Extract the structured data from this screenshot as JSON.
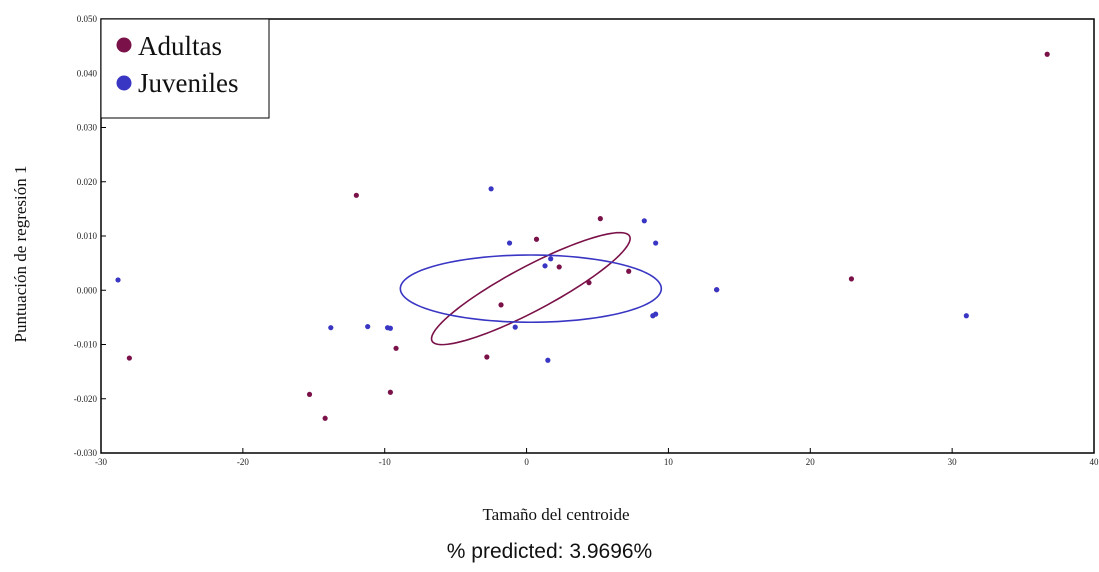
{
  "chart_data": {
    "type": "scatter",
    "xlabel": "Tamaño del centroide",
    "ylabel": "Puntuación de regresión 1",
    "xlim": [
      -30,
      40
    ],
    "ylim": [
      -0.03,
      0.05
    ],
    "x_ticks": [
      -30,
      -20,
      -10,
      0,
      10,
      20,
      30,
      40
    ],
    "y_ticks": [
      -0.03,
      -0.02,
      -0.01,
      0.0,
      0.01,
      0.02,
      0.03,
      0.04,
      0.05
    ],
    "y_tick_labels": [
      "-0.030",
      "-0.020",
      "-0.010",
      "0.000",
      "0.010",
      "0.020",
      "0.030",
      "0.040",
      "0.050"
    ],
    "legend_position": "top-left",
    "series": [
      {
        "name": "Adultas",
        "color": "#7a1148",
        "points": [
          [
            36.7,
            0.0435
          ],
          [
            -12.0,
            0.0175
          ],
          [
            5.2,
            0.0132
          ],
          [
            0.7,
            0.0094
          ],
          [
            2.3,
            0.0043
          ],
          [
            7.2,
            0.0035
          ],
          [
            4.4,
            0.0014
          ],
          [
            22.9,
            0.0021
          ],
          [
            13.4,
            0.0001
          ],
          [
            -1.8,
            -0.0027
          ],
          [
            -9.2,
            -0.0107
          ],
          [
            -2.8,
            -0.0123
          ],
          [
            -28.0,
            -0.0125
          ],
          [
            -9.6,
            -0.0188
          ],
          [
            -15.3,
            -0.0192
          ],
          [
            -14.2,
            -0.0236
          ]
        ],
        "ellipse": {
          "center": [
            0.3,
            0.0003
          ],
          "semi_major": 7.0,
          "semi_minor": 0.0046,
          "slope": 0.00132
        }
      },
      {
        "name": "Juveniles",
        "color": "#3a36c4",
        "points": [
          [
            -2.5,
            0.0187
          ],
          [
            8.3,
            0.0128
          ],
          [
            -1.2,
            0.0087
          ],
          [
            9.1,
            0.0087
          ],
          [
            1.7,
            0.0058
          ],
          [
            1.3,
            0.0045
          ],
          [
            -28.8,
            0.0019
          ],
          [
            13.4,
            0.0001
          ],
          [
            9.1,
            -0.0044
          ],
          [
            8.9,
            -0.0047
          ],
          [
            31.0,
            -0.0047
          ],
          [
            -11.2,
            -0.0067
          ],
          [
            -13.8,
            -0.0069
          ],
          [
            -9.8,
            -0.0069
          ],
          [
            -9.6,
            -0.007
          ],
          [
            -0.8,
            -0.0068
          ],
          [
            1.5,
            -0.0129
          ]
        ],
        "ellipse": {
          "center": [
            0.3,
            0.0003
          ],
          "semi_major": 9.2,
          "semi_minor": 0.0062,
          "slope": 0
        }
      }
    ]
  },
  "footer": {
    "text": "% predicted:  3.9696%"
  }
}
